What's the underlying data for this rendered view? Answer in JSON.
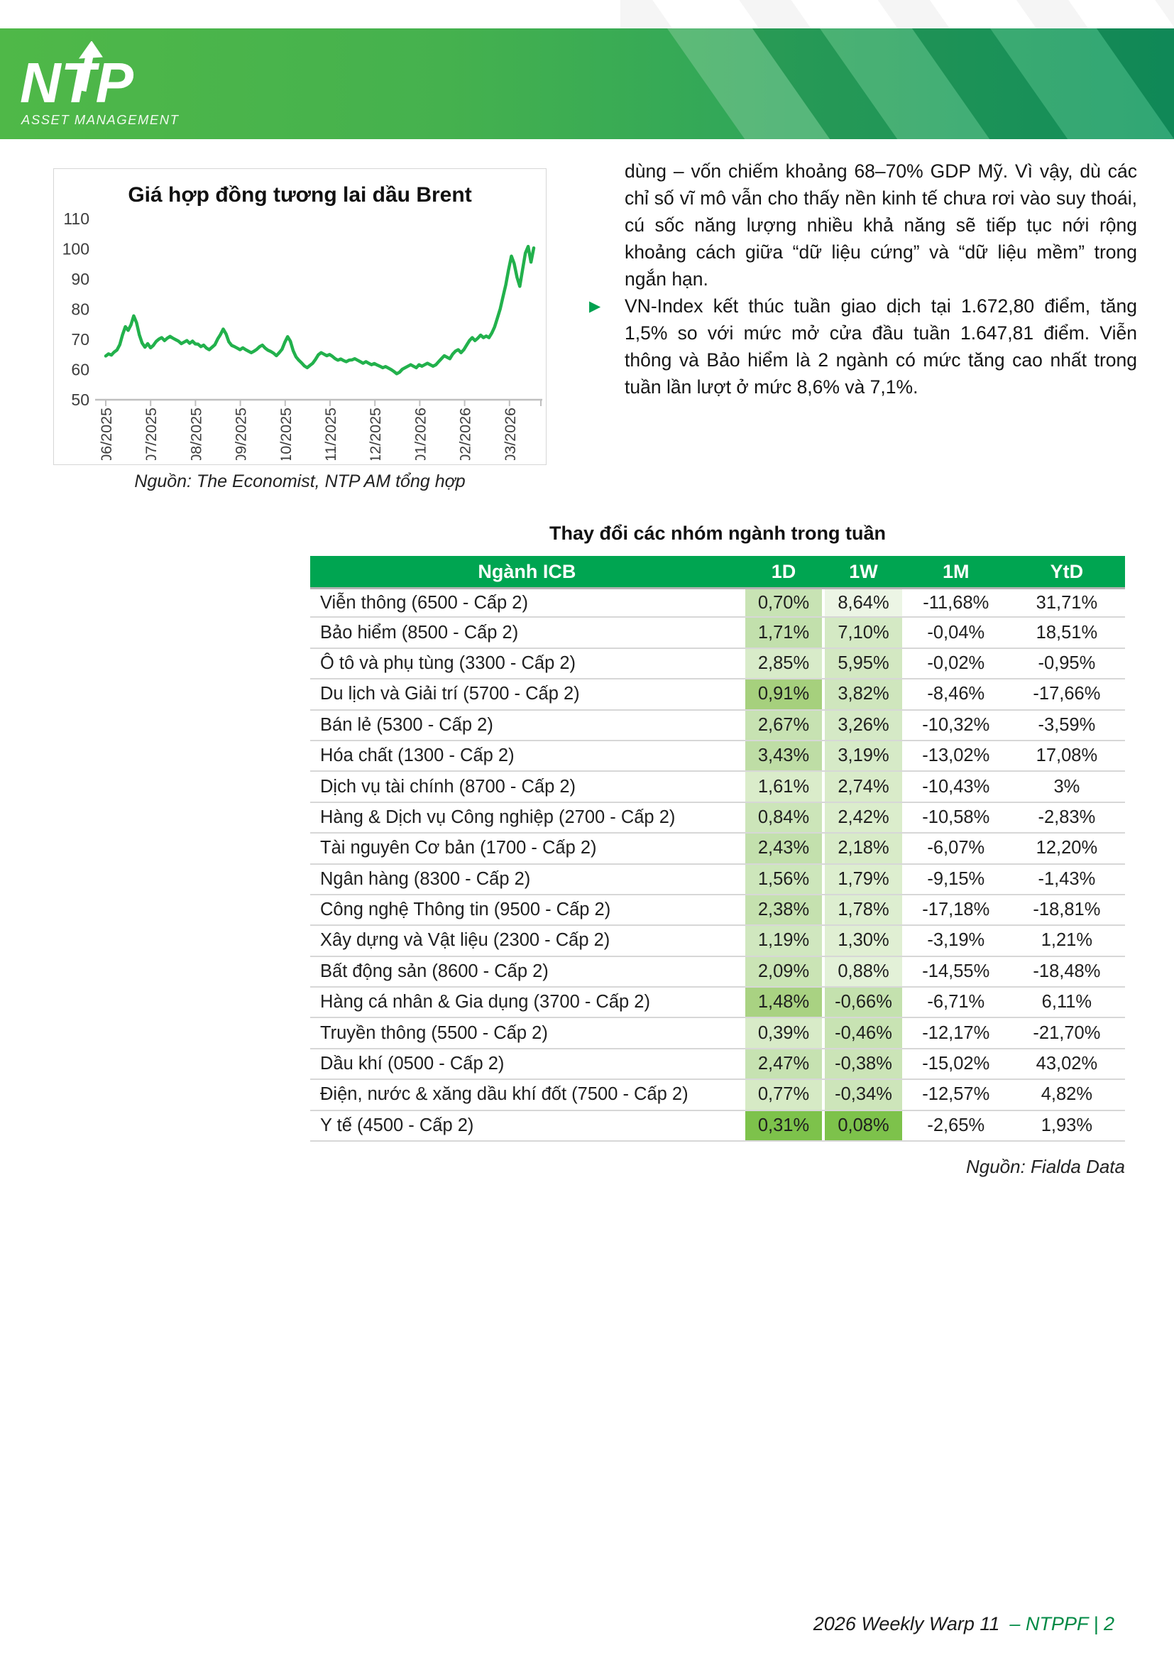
{
  "logo": {
    "brand": "NTP",
    "tagline": "ASSET MANAGEMENT"
  },
  "colors": {
    "banner_green_left": "#4FB848",
    "banner_green_right": "#149A62",
    "table_header_green": "#00A551",
    "chart_line_green": "#22B14C",
    "bullet_green": "#00A14F",
    "footer_green": "#008A45"
  },
  "chart_data": {
    "type": "line",
    "title": "Giá hợp đồng tương lai dầu Brent",
    "x_tick_labels": [
      "06/2025",
      "07/2025",
      "08/2025",
      "09/2025",
      "10/2025",
      "11/2025",
      "12/2025",
      "01/2026",
      "02/2026",
      "03/2026"
    ],
    "y_ticks": [
      110,
      100,
      90,
      80,
      70,
      60,
      50
    ],
    "ylim": [
      50,
      110
    ],
    "grid": false,
    "legend": "none",
    "series": [
      {
        "name": "Brent futures price",
        "color": "#22B14C",
        "values": [
          64.5,
          65.2,
          64.8,
          65.8,
          66.5,
          68.2,
          71.5,
          74.2,
          73.0,
          74.8,
          77.8,
          75.5,
          71.5,
          68.8,
          67.4,
          68.6,
          67.2,
          68.0,
          69.3,
          70.1,
          70.6,
          69.6,
          70.4,
          71.0,
          70.4,
          69.9,
          69.4,
          68.6,
          69.1,
          69.6,
          68.7,
          69.4,
          68.5,
          68.4,
          67.6,
          68.1,
          67.1,
          66.6,
          67.4,
          68.2,
          70.1,
          71.6,
          73.4,
          71.8,
          69.2,
          68.0,
          67.6,
          67.1,
          66.6,
          67.2,
          66.6,
          66.1,
          65.6,
          66.1,
          66.7,
          67.6,
          68.1,
          67.1,
          66.4,
          66.0,
          65.4,
          64.6,
          65.6,
          66.7,
          69.0,
          70.9,
          69.4,
          66.2,
          64.2,
          63.1,
          62.2,
          61.2,
          60.6,
          61.4,
          62.1,
          63.4,
          64.9,
          65.6,
          65.1,
          64.6,
          65.0,
          64.4,
          63.6,
          63.1,
          63.5,
          63.0,
          62.6,
          63.1,
          63.2,
          63.6,
          63.1,
          62.6,
          62.1,
          62.6,
          62.1,
          61.6,
          62.0,
          61.5,
          61.1,
          60.6,
          61.0,
          60.5,
          60.0,
          59.4,
          58.6,
          59.1,
          60.1,
          60.6,
          61.1,
          61.6,
          61.1,
          60.6,
          61.6,
          61.1,
          61.6,
          62.1,
          61.6,
          61.1,
          61.6,
          62.6,
          63.6,
          64.6,
          64.1,
          63.6,
          65.1,
          66.1,
          66.6,
          65.6,
          66.6,
          68.1,
          69.6,
          70.6,
          69.6,
          70.4,
          71.4,
          70.6,
          71.1,
          70.6,
          72.1,
          74.1,
          77.1,
          80.1,
          84.1,
          88.1,
          93.1,
          97.6,
          95.1,
          90.6,
          87.6,
          93.1,
          98.6,
          100.8,
          95.6,
          100.3
        ]
      }
    ],
    "source": "Nguồn: The Economist, NTP AM tổng hợp"
  },
  "commentary": {
    "paragraph1": "dùng – vốn chiếm khoảng 68–70% GDP Mỹ. Vì vậy, dù các chỉ số vĩ mô vẫn cho thấy nền kinh tế chưa rơi vào suy thoái, cú sốc năng lượng nhiều khả năng sẽ tiếp tục nới rộng khoảng cách giữa “dữ liệu cứng” và “dữ liệu mềm” trong ngắn hạn.",
    "bullet2": "VN-Index kết thúc tuần giao dịch tại 1.672,80 điểm, tăng 1,5% so với mức mở cửa đầu tuần 1.647,81 điểm. Viễn thông và Bảo hiểm là 2 ngành có mức tăng cao nhất trong tuần lần lượt ở mức 8,6% và 7,1%."
  },
  "sector_table": {
    "title": "Thay đổi các nhóm ngành trong tuần",
    "headers": [
      "Ngành ICB",
      "1D",
      "1W",
      "1M",
      "YtD"
    ],
    "header_bg": "#00A551",
    "rows": [
      {
        "name": "Viễn thông (6500 - Cấp 2)",
        "d1": "0,70%",
        "w1": "8,64%",
        "m1": "-11,68%",
        "ytd": "31,71%",
        "d1_bg": "#c8e3b4",
        "w1_bg": "#ecf5e5"
      },
      {
        "name": "Bảo hiểm (8500 - Cấp 2)",
        "d1": "1,71%",
        "w1": "7,10%",
        "m1": "-0,04%",
        "ytd": "18,51%",
        "d1_bg": "#c2e0ac",
        "w1_bg": "#d4e9c4"
      },
      {
        "name": "Ô tô và phụ tùng (3300 - Cấp 2)",
        "d1": "2,85%",
        "w1": "5,95%",
        "m1": "-0,02%",
        "ytd": "-0,95%",
        "d1_bg": "#d8ebc9",
        "w1_bg": "#d3e8c2"
      },
      {
        "name": "Du lịch và Giải trí (5700 - Cấp 2)",
        "d1": "0,91%",
        "w1": "3,82%",
        "m1": "-8,46%",
        "ytd": "-17,66%",
        "d1_bg": "#a6d07d",
        "w1_bg": "#cfe6bd"
      },
      {
        "name": "Bán lẻ (5300 - Cấp 2)",
        "d1": "2,67%",
        "w1": "3,26%",
        "m1": "-10,32%",
        "ytd": "-3,59%",
        "d1_bg": "#c7e2b2",
        "w1_bg": "#d5e9c6"
      },
      {
        "name": "Hóa chất (1300 - Cấp 2)",
        "d1": "3,43%",
        "w1": "3,19%",
        "m1": "-13,02%",
        "ytd": "17,08%",
        "d1_bg": "#bedda5",
        "w1_bg": "#d6eac7"
      },
      {
        "name": "Dịch vụ tài chính (8700 - Cấp 2)",
        "d1": "1,61%",
        "w1": "2,74%",
        "m1": "-10,43%",
        "ytd": "3%",
        "d1_bg": "#daecca",
        "w1_bg": "#d9ebc9"
      },
      {
        "name": "Hàng & Dịch vụ Công nghiệp (2700 - Cấp 2)",
        "d1": "0,84%",
        "w1": "2,42%",
        "m1": "-10,58%",
        "ytd": "-2,83%",
        "d1_bg": "#cce5b9",
        "w1_bg": "#dbedcc"
      },
      {
        "name": "Tài nguyên Cơ bản (1700 - Cấp 2)",
        "d1": "2,43%",
        "w1": "2,18%",
        "m1": "-6,07%",
        "ytd": "12,20%",
        "d1_bg": "#c3e0ad",
        "w1_bg": "#d8ebc8"
      },
      {
        "name": "Ngân hàng (8300 - Cấp 2)",
        "d1": "1,56%",
        "w1": "1,79%",
        "m1": "-9,15%",
        "ytd": "-1,43%",
        "d1_bg": "#cde6bb",
        "w1_bg": "#ddeecf"
      },
      {
        "name": "Công nghệ Thông tin (9500 - Cấp 2)",
        "d1": "2,38%",
        "w1": "1,78%",
        "m1": "-17,18%",
        "ytd": "-18,81%",
        "d1_bg": "#c5e1af",
        "w1_bg": "#ddeed0"
      },
      {
        "name": "Xây dựng và Vật liệu (2300 - Cấp 2)",
        "d1": "1,19%",
        "w1": "1,30%",
        "m1": "-3,19%",
        "ytd": "1,21%",
        "d1_bg": "#d0e7bf",
        "w1_bg": "#e0efd3"
      },
      {
        "name": "Bất động sản (8600 - Cấp 2)",
        "d1": "2,09%",
        "w1": "0,88%",
        "m1": "-14,55%",
        "ytd": "-18,48%",
        "d1_bg": "#cae4b5",
        "w1_bg": "#e3f1d8"
      },
      {
        "name": "Hàng cá nhân & Gia dụng (3700 - Cấp 2)",
        "d1": "1,48%",
        "w1": "-0,66%",
        "m1": "-6,71%",
        "ytd": "6,11%",
        "d1_bg": "#a9d282",
        "w1_bg": "#c4e1ae"
      },
      {
        "name": "Truyền thông (5500 - Cấp 2)",
        "d1": "0,39%",
        "w1": "-0,46%",
        "m1": "-12,17%",
        "ytd": "-21,70%",
        "d1_bg": "#d8ebc8",
        "w1_bg": "#c8e3b3"
      },
      {
        "name": "Dầu khí (0500 - Cấp 2)",
        "d1": "2,47%",
        "w1": "-0,38%",
        "m1": "-15,02%",
        "ytd": "43,02%",
        "d1_bg": "#c6e2b1",
        "w1_bg": "#cbe4b7"
      },
      {
        "name": "Điện, nước & xăng dầu khí đốt (7500 - Cấp 2)",
        "d1": "0,77%",
        "w1": "-0,34%",
        "m1": "-12,57%",
        "ytd": "4,82%",
        "d1_bg": "#d6eac5",
        "w1_bg": "#cde5ba"
      },
      {
        "name": "Y tế (4500 - Cấp 2)",
        "d1": "0,31%",
        "w1": "0,08%",
        "m1": "-2,65%",
        "ytd": "1,93%",
        "d1_bg": "#7dc24b",
        "w1_bg": "#7dc24b"
      }
    ],
    "source": "Nguồn: Fialda Data"
  },
  "footer": {
    "left": "2026 Weekly Warp 11",
    "right": "– NTPPF | 2"
  }
}
